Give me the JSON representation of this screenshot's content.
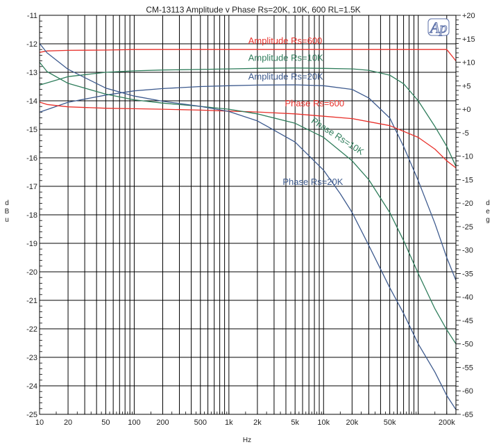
{
  "chart_data": {
    "type": "line",
    "title": "CM-13113  Amplitude v Phase  Rs=20K, 10K, 600   RL=1.5K",
    "xlabel": "Hz",
    "ylabel_left": "dBu",
    "ylabel_right": "deg",
    "xscale": "log",
    "xlim": [
      10,
      250000
    ],
    "ylim_left": [
      -25,
      -11
    ],
    "ylim_right": [
      -65,
      20
    ],
    "x_ticks": [
      {
        "v": 10,
        "label": "10"
      },
      {
        "v": 20,
        "label": "20"
      },
      {
        "v": 50,
        "label": "50"
      },
      {
        "v": 100,
        "label": "100"
      },
      {
        "v": 200,
        "label": "200"
      },
      {
        "v": 500,
        "label": "500"
      },
      {
        "v": 1000,
        "label": "1k"
      },
      {
        "v": 2000,
        "label": "2k"
      },
      {
        "v": 5000,
        "label": "5k"
      },
      {
        "v": 10000,
        "label": "10k"
      },
      {
        "v": 20000,
        "label": "20k"
      },
      {
        "v": 50000,
        "label": "50k"
      },
      {
        "v": 200000,
        "label": "200k"
      }
    ],
    "y_ticks_left": [
      "-11",
      "-12",
      "-13",
      "-14",
      "-15",
      "-16",
      "-17",
      "-18",
      "-19",
      "-20",
      "-21",
      "-22",
      "-23",
      "-24",
      "-25"
    ],
    "y_ticks_right": [
      "+20",
      "+15",
      "+10",
      "+5",
      "+0",
      "-5",
      "-10",
      "-15",
      "-20",
      "-25",
      "-30",
      "-35",
      "-40",
      "-45",
      "-50",
      "-55",
      "-60",
      "-65"
    ],
    "logo_text": "Ap",
    "grid": true,
    "series": [
      {
        "name": "Amplitude Rs=600",
        "axis": "left",
        "color": "#e8302a",
        "x": [
          10,
          12,
          20,
          50,
          100,
          1000,
          10000,
          50000,
          100000,
          200000,
          250000
        ],
        "y": [
          -12.3,
          -12.25,
          -12.23,
          -12.22,
          -12.2,
          -12.2,
          -12.2,
          -12.2,
          -12.2,
          -12.2,
          -12.6
        ]
      },
      {
        "name": "Amplitude Rs=10K",
        "axis": "left",
        "color": "#2e7d5b",
        "x": [
          10,
          20,
          50,
          100,
          200,
          500,
          1000,
          2000,
          5000,
          10000,
          20000,
          30000,
          50000,
          70000,
          100000,
          150000,
          200000,
          250000
        ],
        "y": [
          -13.45,
          -13.15,
          -13.0,
          -12.95,
          -12.92,
          -12.9,
          -12.88,
          -12.86,
          -12.85,
          -12.86,
          -12.88,
          -12.93,
          -13.1,
          -13.4,
          -14.0,
          -14.9,
          -15.6,
          -16.3
        ]
      },
      {
        "name": "Amplitude Rs=20K",
        "axis": "left",
        "color": "#3d5a8e",
        "x": [
          10,
          20,
          50,
          100,
          200,
          500,
          1000,
          2000,
          5000,
          10000,
          20000,
          30000,
          50000,
          70000,
          100000,
          150000,
          200000,
          250000
        ],
        "y": [
          -14.4,
          -14.05,
          -13.8,
          -13.65,
          -13.57,
          -13.5,
          -13.47,
          -13.45,
          -13.44,
          -13.47,
          -13.6,
          -13.9,
          -14.6,
          -15.6,
          -16.8,
          -18.3,
          -19.5,
          -20.3
        ]
      },
      {
        "name": "Phase Rs=600",
        "axis": "right",
        "color": "#e8302a",
        "x": [
          10,
          12,
          20,
          50,
          100,
          200,
          500,
          1000,
          2000,
          5000,
          10000,
          20000,
          50000,
          100000,
          150000,
          200000,
          250000
        ],
        "y": [
          1.5,
          1.0,
          0.5,
          0.2,
          0.1,
          0.0,
          -0.2,
          -0.4,
          -0.6,
          -1.0,
          -1.5,
          -2.0,
          -3.5,
          -6.0,
          -8.5,
          -11.0,
          -12.5
        ]
      },
      {
        "name": "Phase Rs=10K",
        "axis": "right",
        "color": "#2e7d5b",
        "x": [
          10,
          12,
          20,
          50,
          100,
          200,
          500,
          1000,
          2000,
          5000,
          10000,
          20000,
          30000,
          50000,
          70000,
          100000,
          150000,
          200000,
          250000
        ],
        "y": [
          10.0,
          8.0,
          5.5,
          3.2,
          2.0,
          1.3,
          0.6,
          0.0,
          -1.0,
          -3.0,
          -6.0,
          -11.0,
          -15.0,
          -22.0,
          -28.0,
          -35.0,
          -42.5,
          -47.0,
          -50.0
        ]
      },
      {
        "name": "Phase Rs=20K",
        "axis": "right",
        "color": "#3d5a8e",
        "x": [
          10,
          12,
          20,
          50,
          100,
          200,
          500,
          1000,
          2000,
          5000,
          10000,
          15000,
          20000,
          30000,
          50000,
          70000,
          100000,
          150000,
          200000,
          250000
        ],
        "y": [
          14.0,
          12.0,
          8.5,
          4.5,
          2.8,
          1.7,
          0.6,
          -0.5,
          -2.5,
          -7.0,
          -13.0,
          -18.0,
          -22.0,
          -29.0,
          -38.0,
          -43.5,
          -50.0,
          -56.0,
          -61.0,
          -64.0
        ]
      }
    ],
    "annotations": [
      {
        "text": "Amplitude Rs=600",
        "color": "#e8302a",
        "x": 1600,
        "y_left": -12.0,
        "rotate": 0
      },
      {
        "text": "Amplitude Rs=10K",
        "color": "#2e7d5b",
        "x": 1600,
        "y_left": -12.6,
        "rotate": 0
      },
      {
        "text": "Amplitude Rs=20K",
        "color": "#3d5a8e",
        "x": 1600,
        "y_left": -13.25,
        "rotate": 0
      },
      {
        "text": "Phase Rs=600",
        "color": "#e8302a",
        "x": 3900,
        "y_left": -14.2,
        "rotate": 0
      },
      {
        "text": "Phase Rs=10K",
        "color": "#2e7d5b",
        "x": 7300,
        "y_left": -14.75,
        "rotate": 33
      },
      {
        "text": "Phase Rs=20K",
        "color": "#3d5a8e",
        "x": 3700,
        "y_left": -16.95,
        "rotate": 0
      }
    ]
  }
}
